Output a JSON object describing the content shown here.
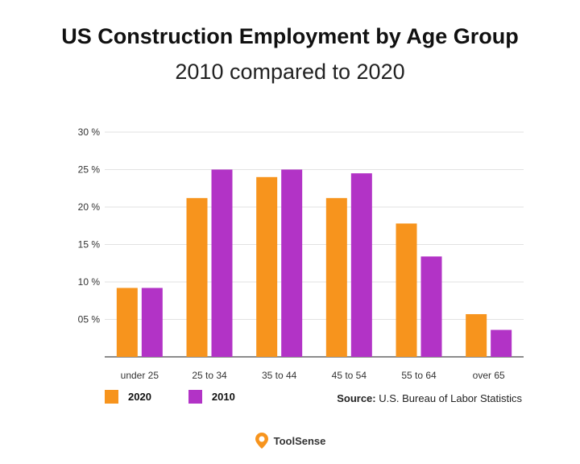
{
  "chart_data": {
    "type": "bar",
    "title": "US Construction Employment by Age Group",
    "subtitle": "2010 compared to 2020",
    "categories": [
      "under 25",
      "25 to 34",
      "35 to 44",
      "45 to 54",
      "55 to 64",
      "over 65"
    ],
    "series": [
      {
        "name": "2020",
        "color": "#f7941d",
        "values": [
          9.2,
          21.2,
          24.0,
          21.2,
          17.8,
          5.7
        ]
      },
      {
        "name": "2010",
        "color": "#b233c6",
        "values": [
          9.2,
          25.0,
          25.0,
          24.5,
          13.4,
          3.6
        ]
      }
    ],
    "ylim": [
      0,
      30
    ],
    "yticks": [
      5,
      10,
      15,
      20,
      25,
      30
    ],
    "ytick_labels": [
      "05 %",
      "10 %",
      "15 %",
      "20 %",
      "25 %",
      "30 %"
    ],
    "grid": true,
    "legend_position": "bottom-left"
  },
  "source": {
    "label": "Source:",
    "text": "U.S. Bureau of Labor Statistics"
  },
  "brand": {
    "name": "ToolSense",
    "icon": "location-pin-icon",
    "color": "#f7941d"
  }
}
